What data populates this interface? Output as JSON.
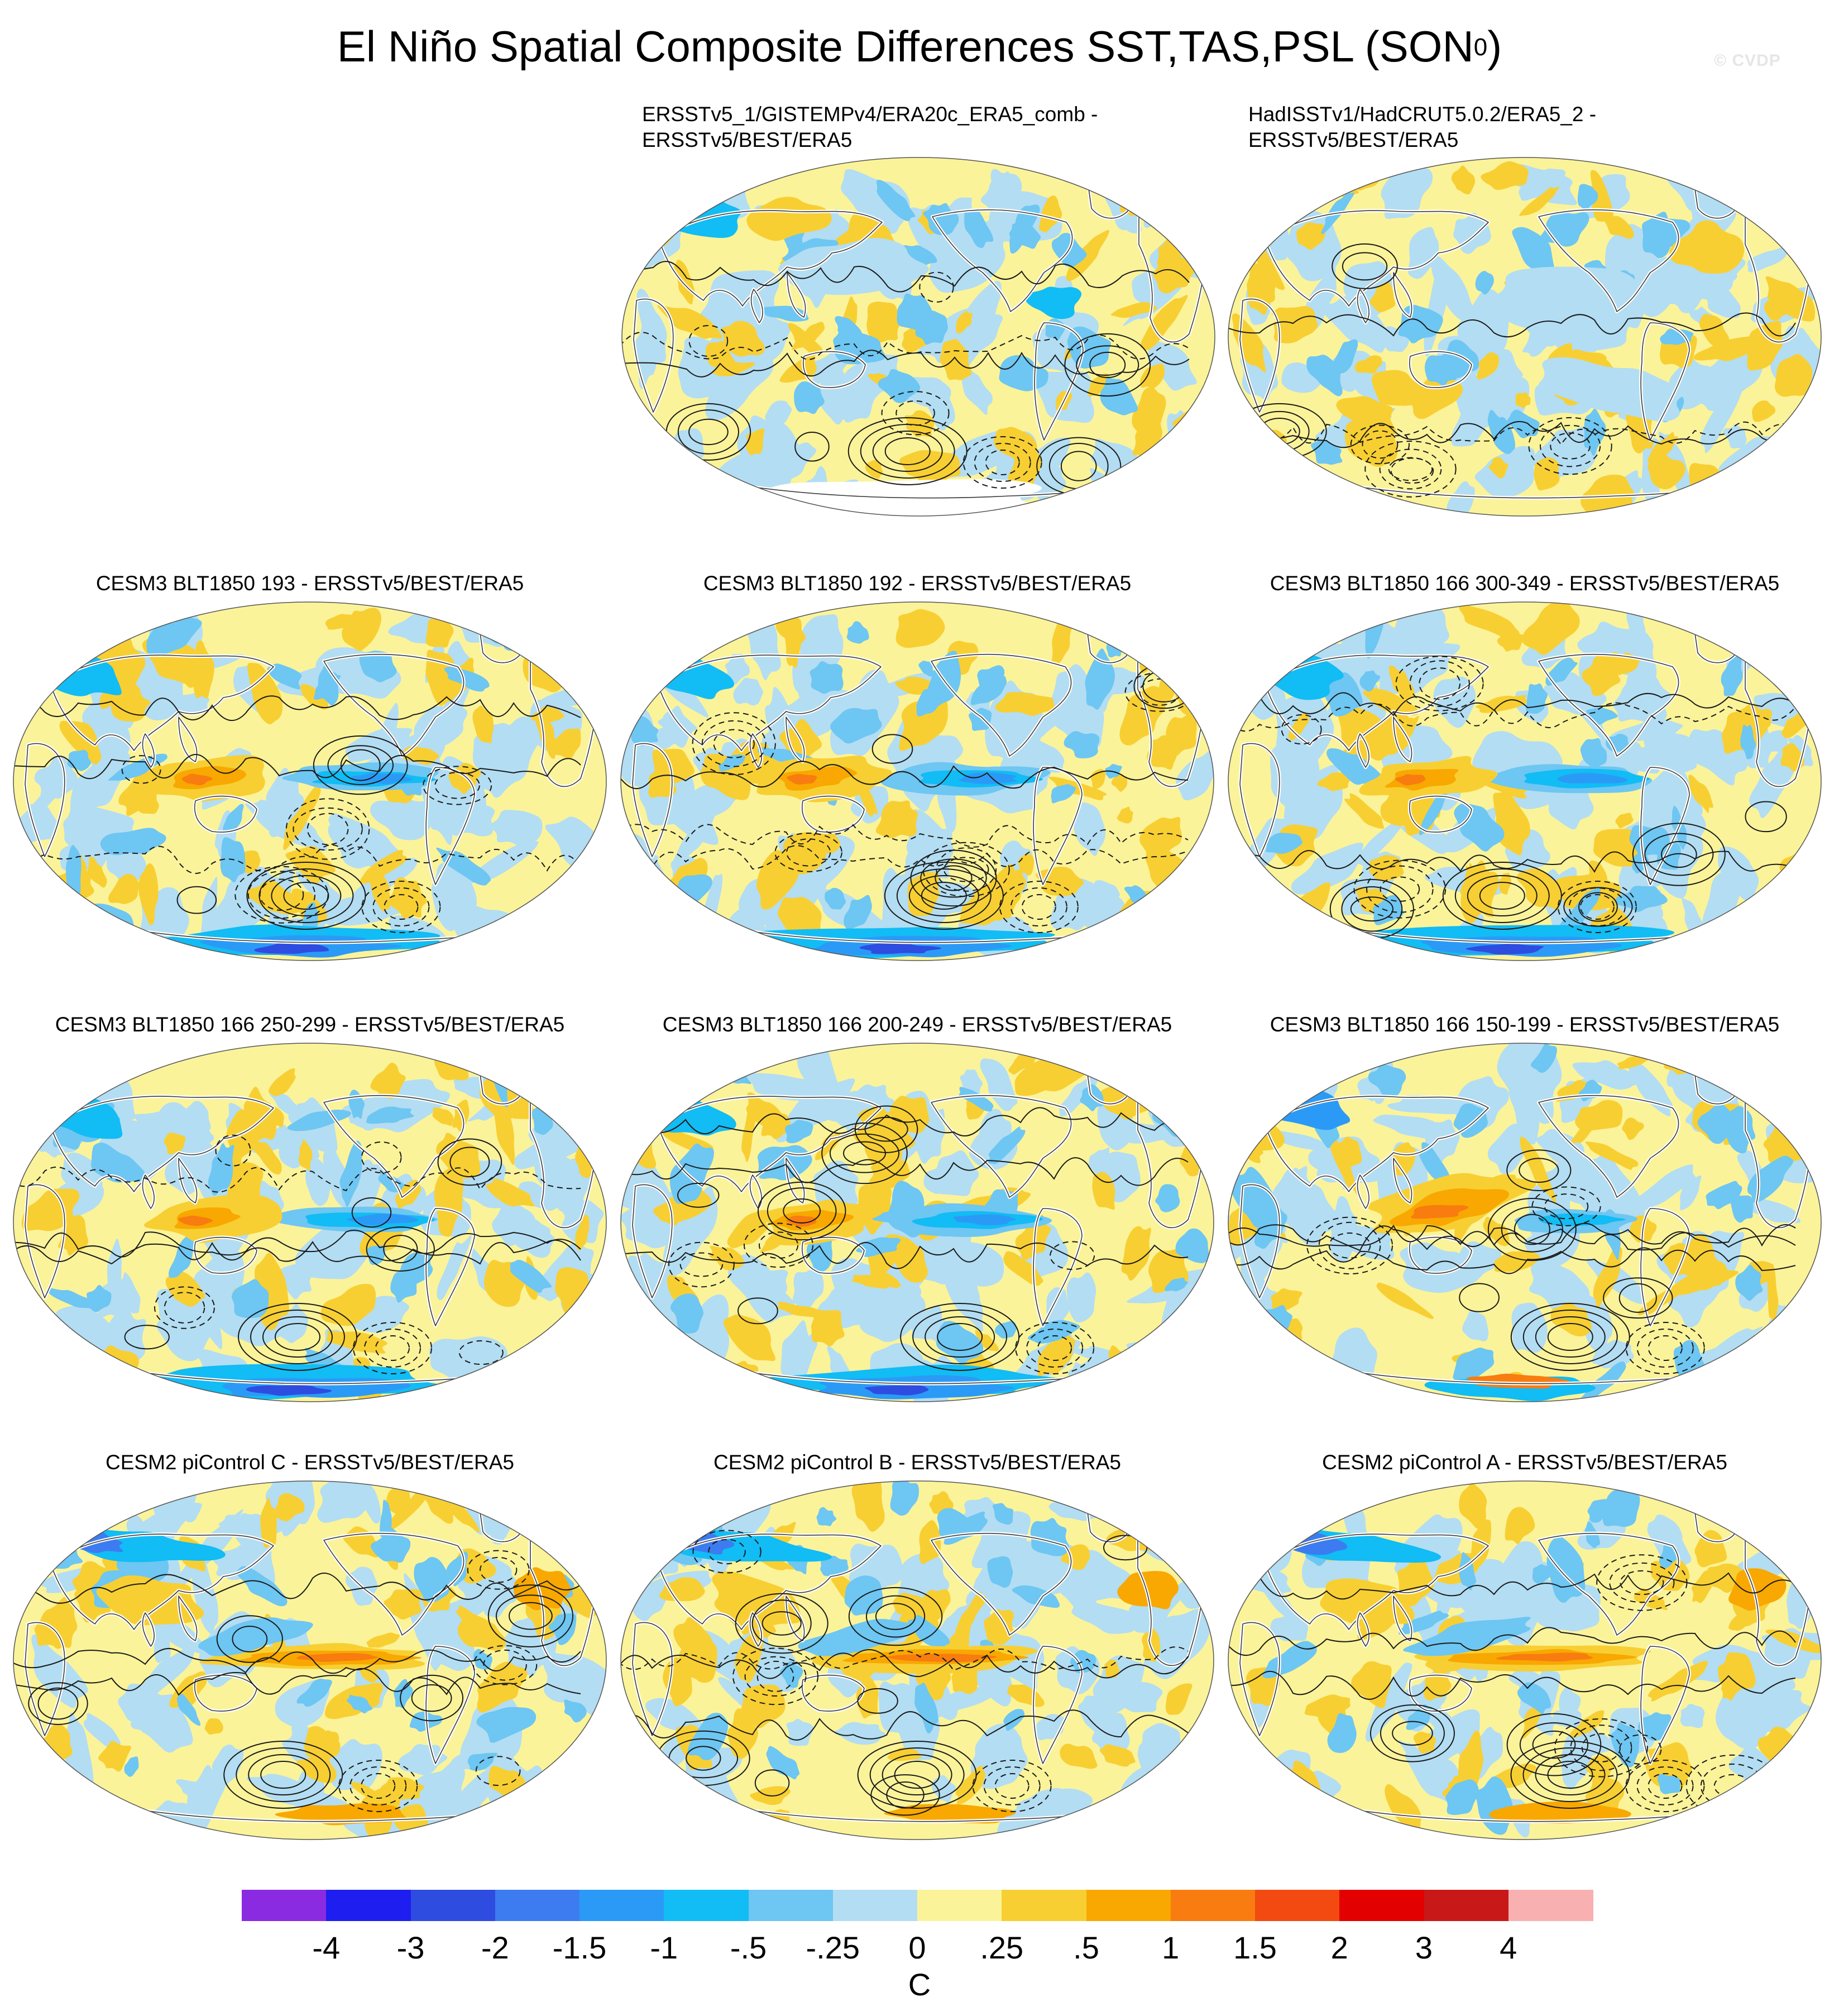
{
  "title": "El Niño Spatial Composite Differences SST,TAS,PSL (SON",
  "title_superscript": "0",
  "title_close": ")",
  "watermark": "© CVDP",
  "units": "C",
  "panels": [
    {
      "title_lines": [
        "ERSSTv5_1/GISTEMPv4/ERA20c_ERA5_comb -",
        "ERSSTv5/BEST/ERA5"
      ],
      "pattern": "obs1",
      "missing_antarctic": true
    },
    {
      "title_lines": [
        "HadISSTv1/HadCRUT5.0.2/ERA5_2 -",
        "ERSSTv5/BEST/ERA5"
      ],
      "pattern": "obs2",
      "missing_antarctic": false
    },
    {
      "title_lines": [
        "CESM3 BLT1850 193 - ERSSTv5/BEST/ERA5"
      ],
      "pattern": "cold",
      "missing_antarctic": false
    },
    {
      "title_lines": [
        "CESM3 BLT1850 192 - ERSSTv5/BEST/ERA5"
      ],
      "pattern": "cold",
      "missing_antarctic": false
    },
    {
      "title_lines": [
        "CESM3 BLT1850 166 300-349 - ERSSTv5/BEST/ERA5"
      ],
      "pattern": "cold",
      "missing_antarctic": false
    },
    {
      "title_lines": [
        "CESM3 BLT1850 166 250-299 - ERSSTv5/BEST/ERA5"
      ],
      "pattern": "cold",
      "missing_antarctic": false
    },
    {
      "title_lines": [
        "CESM3 BLT1850 166 200-249 - ERSSTv5/BEST/ERA5"
      ],
      "pattern": "cold",
      "missing_antarctic": false
    },
    {
      "title_lines": [
        "CESM3 BLT1850 166 150-199 - ERSSTv5/BEST/ERA5"
      ],
      "pattern": "warmwp",
      "missing_antarctic": false
    },
    {
      "title_lines": [
        "CESM2 piControl C - ERSSTv5/BEST/ERA5"
      ],
      "pattern": "warm",
      "missing_antarctic": false
    },
    {
      "title_lines": [
        "CESM2 piControl B - ERSSTv5/BEST/ERA5"
      ],
      "pattern": "warm",
      "missing_antarctic": false
    },
    {
      "title_lines": [
        "CESM2 piControl A - ERSSTv5/BEST/ERA5"
      ],
      "pattern": "warm",
      "missing_antarctic": false
    }
  ],
  "colorbar": {
    "colors": [
      "#8a2be2",
      "#1e1ef0",
      "#2e4ce0",
      "#3c7cf0",
      "#2b9af7",
      "#12bcf4",
      "#6ec6f2",
      "#b3ddf2",
      "#fbf39a",
      "#f8cf32",
      "#f8a800",
      "#f87c10",
      "#f24a10",
      "#e30000",
      "#c81818",
      "#f8b0b0"
    ],
    "tick_labels": [
      "-4",
      "-3",
      "-2",
      "-1.5",
      "-1",
      "-.5",
      "-.25",
      "0",
      ".25",
      ".5",
      "1",
      "1.5",
      "2",
      "3",
      "4"
    ]
  }
}
